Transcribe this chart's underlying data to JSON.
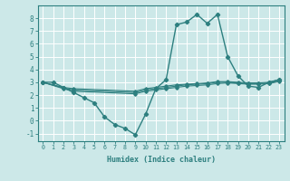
{
  "xlabel": "Humidex (Indice chaleur)",
  "bg_color": "#cce8e8",
  "grid_color": "#ffffff",
  "line_color": "#2d7f7f",
  "xlim": [
    -0.5,
    23.5
  ],
  "ylim": [
    -1.6,
    9.0
  ],
  "xticks": [
    0,
    1,
    2,
    3,
    4,
    5,
    6,
    7,
    8,
    9,
    10,
    11,
    12,
    13,
    14,
    15,
    16,
    17,
    18,
    19,
    20,
    21,
    22,
    23
  ],
  "yticks": [
    -1,
    0,
    1,
    2,
    3,
    4,
    5,
    6,
    7,
    8
  ],
  "lines": [
    {
      "x": [
        0,
        1,
        2,
        3,
        4,
        5,
        6,
        7,
        8,
        9,
        10,
        11,
        12,
        13,
        14,
        15,
        16,
        17,
        18,
        19,
        20,
        21,
        22,
        23
      ],
      "y": [
        3.0,
        3.0,
        2.6,
        2.2,
        1.8,
        1.4,
        0.3,
        -0.3,
        -0.6,
        -1.1,
        0.5,
        2.5,
        3.2,
        7.5,
        7.7,
        8.3,
        7.6,
        8.3,
        5.0,
        3.5,
        2.7,
        2.6,
        3.0,
        3.2
      ]
    },
    {
      "x": [
        0,
        2,
        3,
        9,
        10,
        11,
        12,
        13,
        14,
        15,
        16,
        17,
        18,
        19,
        20,
        21,
        22,
        23
      ],
      "y": [
        3.0,
        2.6,
        2.5,
        2.3,
        2.5,
        2.6,
        2.7,
        2.8,
        2.85,
        2.9,
        2.95,
        3.05,
        3.05,
        3.0,
        2.95,
        2.95,
        3.0,
        3.2
      ]
    },
    {
      "x": [
        0,
        2,
        3,
        9,
        10,
        11,
        12,
        13,
        14,
        15,
        16,
        17,
        18,
        19,
        20,
        21,
        22,
        23
      ],
      "y": [
        3.0,
        2.55,
        2.4,
        2.2,
        2.4,
        2.5,
        2.6,
        2.7,
        2.8,
        2.85,
        2.9,
        3.0,
        3.0,
        2.95,
        2.9,
        2.9,
        2.95,
        3.1
      ]
    },
    {
      "x": [
        0,
        2,
        3,
        9,
        10,
        11,
        12,
        13,
        14,
        15,
        16,
        17,
        18,
        19,
        20,
        21,
        22,
        23
      ],
      "y": [
        3.0,
        2.5,
        2.3,
        2.1,
        2.3,
        2.4,
        2.5,
        2.6,
        2.7,
        2.75,
        2.8,
        2.9,
        2.95,
        2.9,
        2.85,
        2.85,
        2.9,
        3.05
      ]
    }
  ]
}
